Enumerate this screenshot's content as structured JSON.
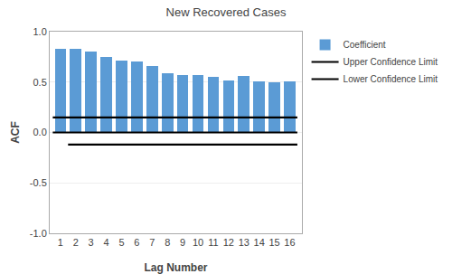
{
  "chart_data": {
    "type": "bar",
    "title": "New Recovered Cases",
    "xlabel": "Lag Number",
    "ylabel": "ACF",
    "x": [
      1,
      2,
      3,
      4,
      5,
      6,
      7,
      8,
      9,
      10,
      11,
      12,
      13,
      14,
      15,
      16
    ],
    "series": [
      {
        "name": "Coefficient",
        "type": "bar",
        "color": "#5B9BD5",
        "values": [
          0.83,
          0.83,
          0.8,
          0.75,
          0.71,
          0.7,
          0.66,
          0.59,
          0.57,
          0.57,
          0.55,
          0.52,
          0.56,
          0.51,
          0.5,
          0.51
        ]
      },
      {
        "name": "Upper Confidence Limit",
        "type": "hline",
        "color": "black",
        "y": 0.15,
        "x": [
          0.5,
          16.5
        ]
      },
      {
        "type": "hline",
        "color": "black",
        "y": 0.0,
        "x": [
          0.5,
          16.5
        ]
      },
      {
        "name": "Lower Confidence Limit",
        "type": "hline",
        "color": "black",
        "y": -0.12,
        "x": [
          1.5,
          16.5
        ]
      }
    ],
    "xlim": [
      0.3,
      16.8
    ],
    "xticks": [
      1,
      2,
      3,
      4,
      5,
      6,
      7,
      8,
      9,
      10,
      11,
      12,
      13,
      14,
      15,
      16
    ],
    "ylim": [
      -1.0,
      1.0
    ],
    "yticks": [
      {
        "value": -1.0,
        "label": "-1.0"
      },
      -0.5,
      {
        "value": 0.0,
        "label": "0.0"
      },
      0.5,
      {
        "value": 1.0,
        "label": "1.0"
      }
    ],
    "grid": true,
    "legend": "upper right"
  }
}
